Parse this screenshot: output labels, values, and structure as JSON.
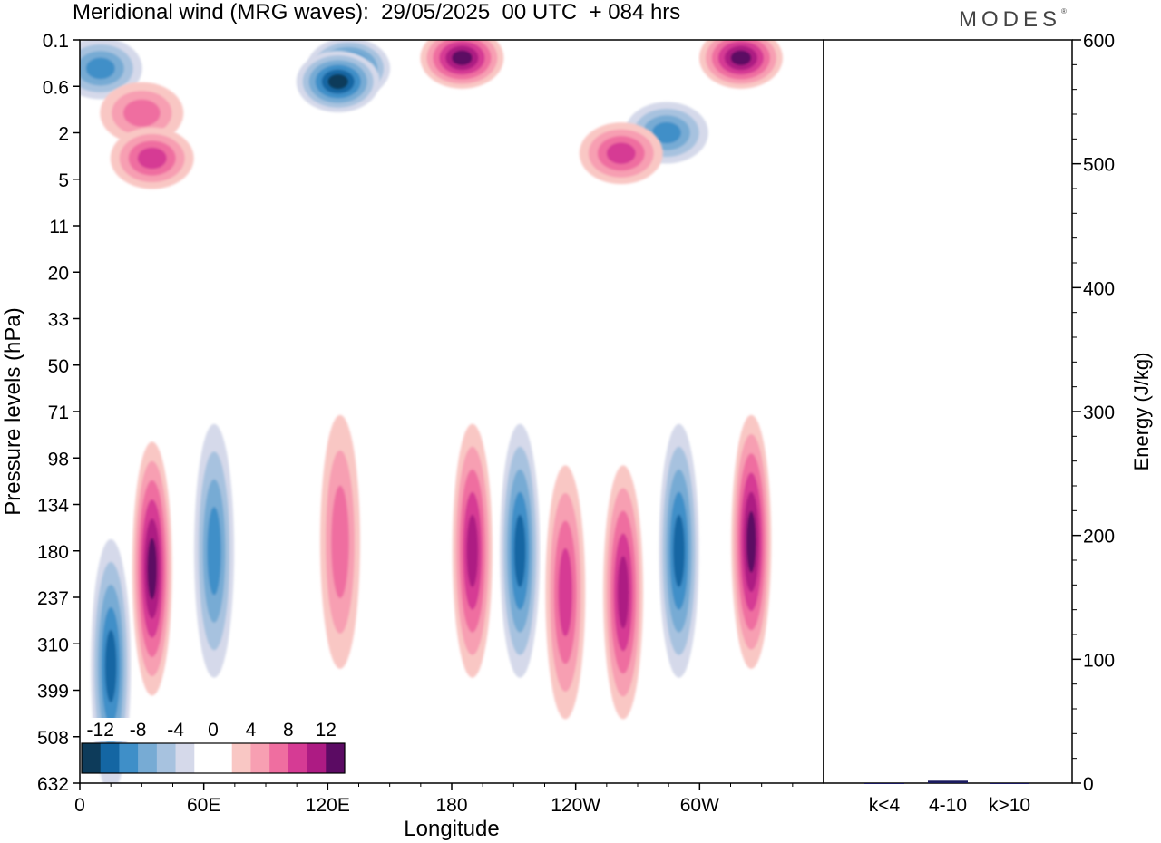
{
  "title": "Meridional wind (MRG waves):  29/05/2025  00 UTC  + 084 hrs",
  "logo": "MODES",
  "colors": {
    "neg": [
      "#0d3b5a",
      "#1466a3",
      "#3f8fc8",
      "#77abd4",
      "#a7c2df",
      "#d5d9ea"
    ],
    "pos": [
      "#f9c7c4",
      "#f79fb2",
      "#ef6ea0",
      "#d63b94",
      "#ad1b83",
      "#5b0b63"
    ],
    "energy_bar": "#1a1a5e"
  },
  "chart_data": [
    {
      "type": "heatmap",
      "xlabel": "Longitude",
      "ylabel": "Pressure levels (hPa)",
      "x_ticks": [
        "0",
        "60E",
        "120E",
        "180",
        "120W",
        "60W"
      ],
      "y_ticks": [
        "0.1",
        "0.6",
        "2",
        "5",
        "11",
        "20",
        "33",
        "50",
        "71",
        "98",
        "134",
        "180",
        "237",
        "310",
        "399",
        "508",
        "632"
      ],
      "colorbar": {
        "labels": [
          "-12",
          "-8",
          "-4",
          "0",
          "4",
          "8",
          "12"
        ],
        "levels": [
          -14,
          -12,
          -10,
          -8,
          -6,
          -4,
          -2,
          2,
          4,
          6,
          8,
          10,
          12,
          14
        ]
      },
      "features": [
        {
          "lon": 10,
          "lev": 0.3,
          "value": -8
        },
        {
          "lon": 30,
          "lev": 1.2,
          "value": 6
        },
        {
          "lon": 35,
          "lev": 3.3,
          "value": 9
        },
        {
          "lon": 130,
          "lev": 0.3,
          "value": -13
        },
        {
          "lon": 125,
          "lev": 0.5,
          "value": -12
        },
        {
          "lon": 185,
          "lev": 0.2,
          "value": 13
        },
        {
          "lon": 320,
          "lev": 0.2,
          "value": 13
        },
        {
          "lon": 284,
          "lev": 2,
          "value": -8
        },
        {
          "lon": 262,
          "lev": 3,
          "value": 8
        },
        {
          "lon": 35,
          "lev": 200,
          "value": 12
        },
        {
          "lon": 65,
          "lev": 180,
          "value": -8
        },
        {
          "lon": 126,
          "lev": 170,
          "value": 7
        },
        {
          "lon": 190,
          "lev": 180,
          "value": 10
        },
        {
          "lon": 213,
          "lev": 180,
          "value": -10
        },
        {
          "lon": 235,
          "lev": 230,
          "value": 9
        },
        {
          "lon": 263,
          "lev": 230,
          "value": 10
        },
        {
          "lon": 290,
          "lev": 180,
          "value": -11
        },
        {
          "lon": 325,
          "lev": 170,
          "value": 12
        },
        {
          "lon": 15,
          "lev": 350,
          "value": -11
        }
      ]
    },
    {
      "type": "bar",
      "categories": [
        "k<4",
        "4-10",
        "k>10"
      ],
      "values": [
        0,
        2,
        0
      ],
      "ylabel": "Energy (J/kg)",
      "ylim": [
        0,
        600
      ],
      "y_ticks": [
        0,
        100,
        200,
        300,
        400,
        500,
        600
      ]
    }
  ]
}
